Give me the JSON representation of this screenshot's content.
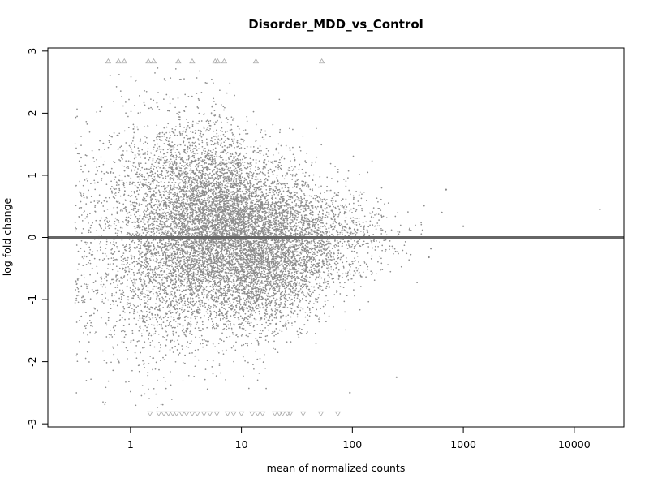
{
  "chart_data": {
    "type": "scatter",
    "title": "Disorder_MDD_vs_Control",
    "xlabel": "mean of normalized counts",
    "ylabel": "log fold change",
    "x_scale": "log10",
    "xlim": [
      0.18,
      28000
    ],
    "ylim": [
      -3.05,
      3.05
    ],
    "x_ticks": [
      1,
      10,
      100,
      1000,
      10000
    ],
    "x_tick_labels": [
      "1",
      "10",
      "100",
      "1000",
      "10000"
    ],
    "y_ticks": [
      -3,
      -2,
      -1,
      0,
      1,
      2,
      3
    ],
    "y_tick_labels": [
      "-3",
      "-2",
      "-1",
      "0",
      "1",
      "2",
      "3"
    ],
    "reference_line": {
      "y": 0,
      "color": "#666666"
    },
    "grid": false,
    "legend": "none",
    "point_color": "#8c8c8c",
    "marker_color": "#aaaaaa",
    "capped_upper_markers": {
      "y": 2.83,
      "symbol": "triangle-up",
      "x": [
        0.63,
        0.78,
        0.88,
        1.45,
        1.62,
        2.7,
        3.6,
        5.8,
        6.1,
        7.0,
        13.5,
        53
      ]
    },
    "capped_lower_markers": {
      "y": -2.83,
      "symbol": "triangle-down",
      "x": [
        1.5,
        1.8,
        2.0,
        2.2,
        2.4,
        2.6,
        2.9,
        3.2,
        3.6,
        4.0,
        4.6,
        5.2,
        6.0,
        7.5,
        8.5,
        10.0,
        12.5,
        14.0,
        15.5,
        20.0,
        22.0,
        23.5,
        26.0,
        27.5,
        36.0,
        52.0,
        74.0
      ]
    },
    "notable_points": [
      {
        "x": 17000,
        "y": 0.45
      },
      {
        "x": 1000,
        "y": 0.18
      },
      {
        "x": 700,
        "y": 0.77
      },
      {
        "x": 640,
        "y": 0.4
      },
      {
        "x": 510,
        "y": -0.18
      },
      {
        "x": 490,
        "y": -0.32
      },
      {
        "x": 250,
        "y": -2.25
      },
      {
        "x": 95,
        "y": -2.5
      }
    ],
    "n_points_approx": 12000
  }
}
